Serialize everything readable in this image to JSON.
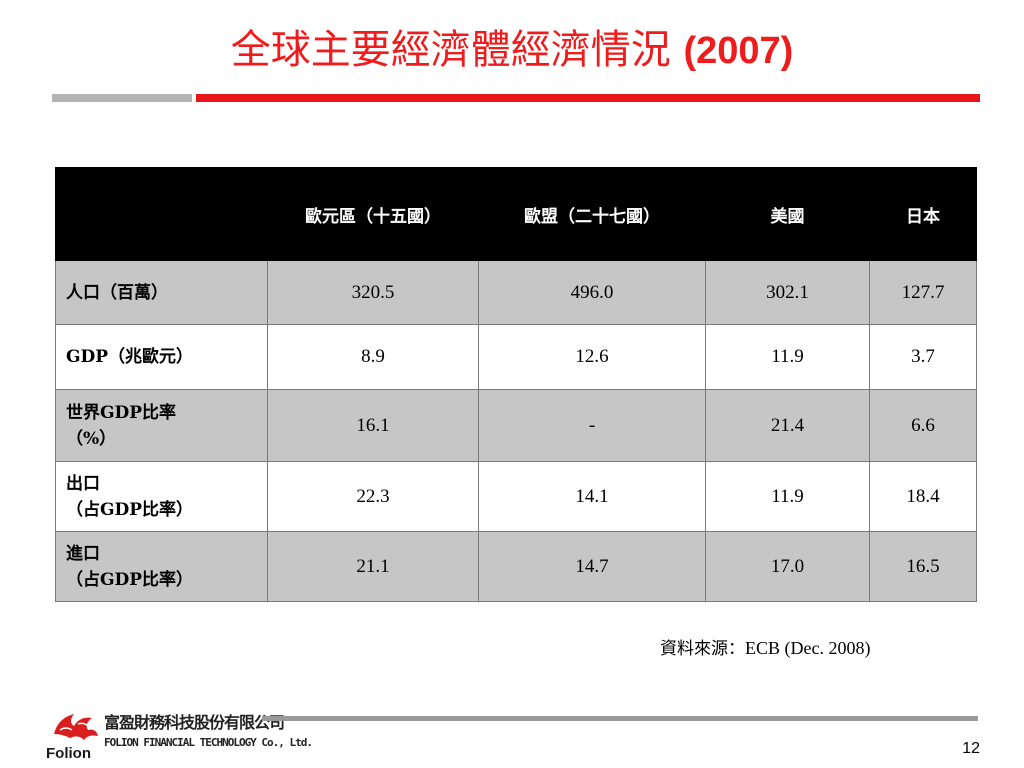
{
  "slide": {
    "title": "全球主要經濟體經濟情況",
    "title_year": "(2007)",
    "accent_color": "#ee1c1c",
    "page_number": "12"
  },
  "table": {
    "headers": [
      "",
      "歐元區（十五國）",
      "歐盟（二十七國）",
      "美國",
      "日本"
    ],
    "rows": [
      {
        "label_lines": [
          "人口（百萬）"
        ],
        "values": [
          "320.5",
          "496.0",
          "302.1",
          "127.7"
        ]
      },
      {
        "label_lines": [
          "GDP（兆歐元）"
        ],
        "values": [
          "8.9",
          "12.6",
          "11.9",
          "3.7"
        ]
      },
      {
        "label_lines": [
          "世界GDP比率",
          "（%）"
        ],
        "values": [
          "16.1",
          "-",
          "21.4",
          "6.6"
        ]
      },
      {
        "label_lines": [
          "出口",
          "（占GDP比率）"
        ],
        "values": [
          "22.3",
          "14.1",
          "11.9",
          "18.4"
        ]
      },
      {
        "label_lines": [
          "進口",
          "（占GDP比率）"
        ],
        "values": [
          "21.1",
          "14.7",
          "17.0",
          "16.5"
        ]
      }
    ]
  },
  "source": {
    "label": "資料來源：",
    "text": "ECB (Dec. 2008)"
  },
  "footer": {
    "company_cn": "富盈財務科技股份有限公司",
    "company_en": "FOLION FINANCIAL TECHNOLOGY Co., Ltd.",
    "logo_text": "Folion"
  }
}
